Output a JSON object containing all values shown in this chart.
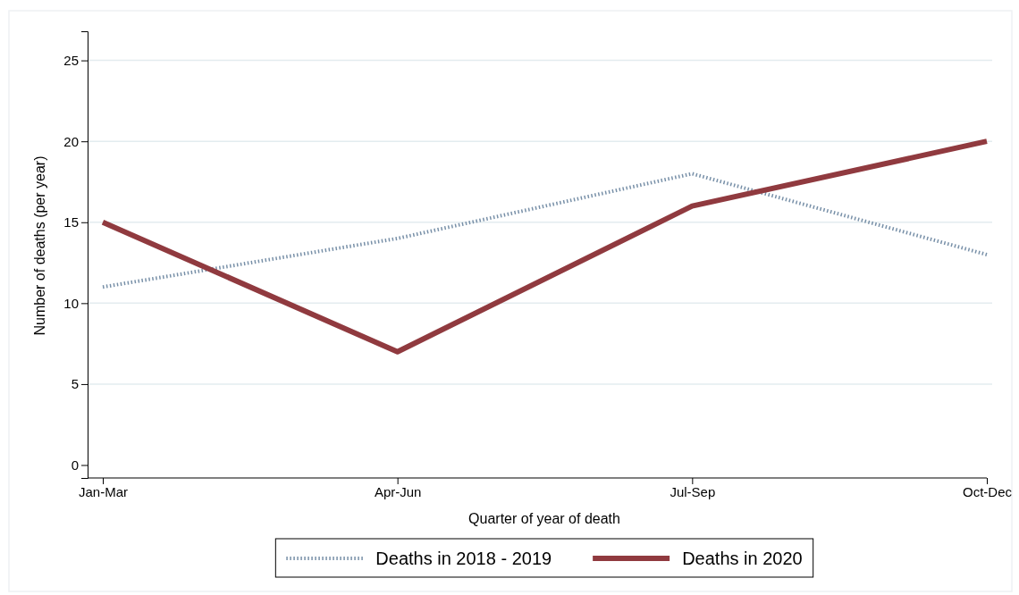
{
  "chart_data": {
    "type": "line",
    "xlabel": "Quarter of year of death",
    "ylabel": "Number of deaths (per year)",
    "categories": [
      "Jan-Mar",
      "Apr-Jun",
      "Jul-Sep",
      "Oct-Dec"
    ],
    "series": [
      {
        "name": "Deaths in 2018 - 2019",
        "color": "#7890a8",
        "line_style": "dotted",
        "values": [
          11,
          14,
          18,
          13
        ]
      },
      {
        "name": "Deaths in 2020",
        "color": "#903a3f",
        "line_style": "solid",
        "values": [
          15,
          7,
          16,
          20
        ]
      }
    ],
    "ylim": [
      -0.8,
      26.8
    ],
    "yticks": [
      0,
      5,
      10,
      15,
      20,
      25
    ],
    "grid": "y",
    "legend": "bottom",
    "marker": "none"
  }
}
